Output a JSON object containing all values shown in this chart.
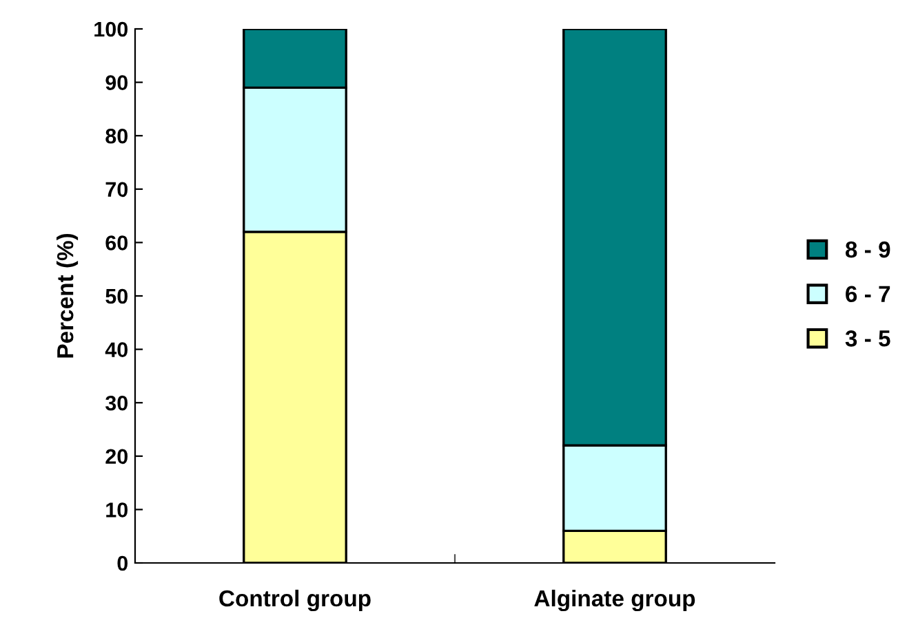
{
  "chart_data": {
    "type": "bar",
    "stacked": true,
    "ylabel": "Percent (%)",
    "categories": [
      "Control group",
      "Alginate group"
    ],
    "series": [
      {
        "name": "3 - 5",
        "color": "#ffff99",
        "values": [
          62,
          6
        ]
      },
      {
        "name": "6 - 7",
        "color": "#ccffff",
        "values": [
          27,
          16
        ]
      },
      {
        "name": "8 - 9",
        "color": "#008080",
        "values": [
          11,
          78
        ]
      }
    ],
    "ylim": [
      0,
      100
    ],
    "yticks": [
      0,
      10,
      20,
      30,
      40,
      50,
      60,
      70,
      80,
      90,
      100
    ],
    "grid": false,
    "legend": "right"
  }
}
